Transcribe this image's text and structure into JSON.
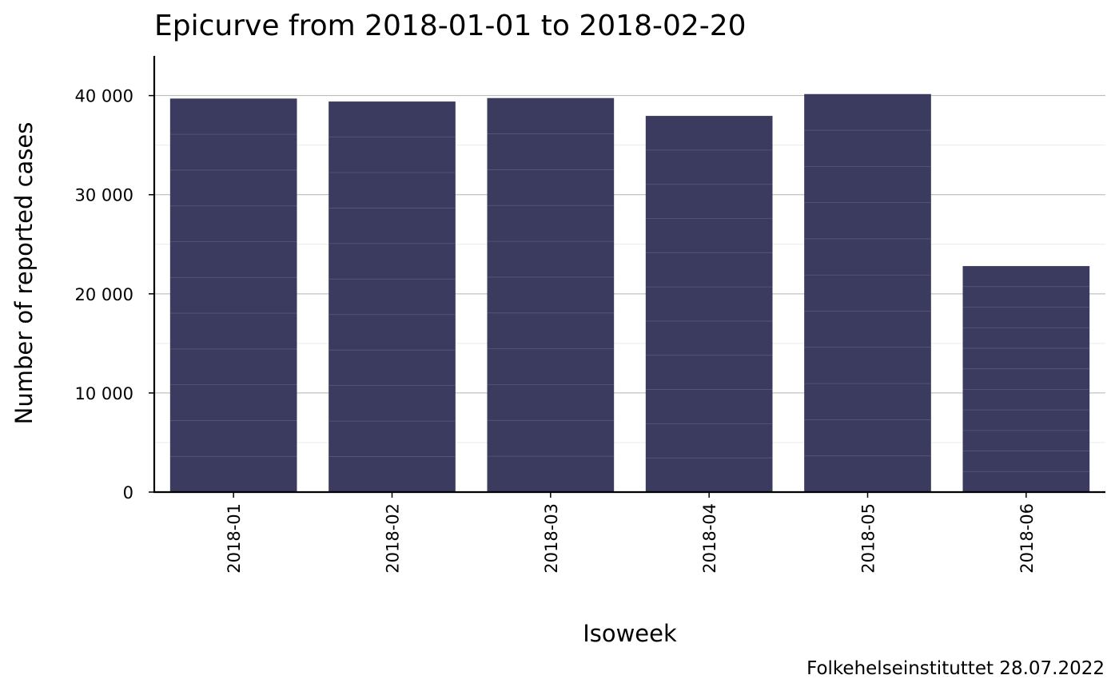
{
  "chart_data": {
    "type": "bar",
    "title": "Epicurve from 2018-01-01 to 2018-02-20",
    "xlabel": "Isoweek",
    "ylabel": "Number of reported cases",
    "caption": "Folkehelseinstituttet 28.07.2022",
    "categories": [
      "2018-01",
      "2018-02",
      "2018-03",
      "2018-04",
      "2018-05",
      "2018-06"
    ],
    "values": [
      39700,
      39400,
      39750,
      37950,
      40150,
      22800
    ],
    "ylim": [
      0,
      44000
    ],
    "yticks": [
      0,
      10000,
      20000,
      30000,
      40000
    ],
    "ytick_labels": [
      "0",
      "10 000",
      "20 000",
      "30 000",
      "40 000"
    ],
    "grid": true,
    "legend": "none",
    "colors": {
      "bar": "#3a3b5e",
      "stripe": "#6e6f8e",
      "grid_major": "#b3b3b3",
      "grid_minor": "#ebebeb",
      "axis": "#000000"
    }
  }
}
